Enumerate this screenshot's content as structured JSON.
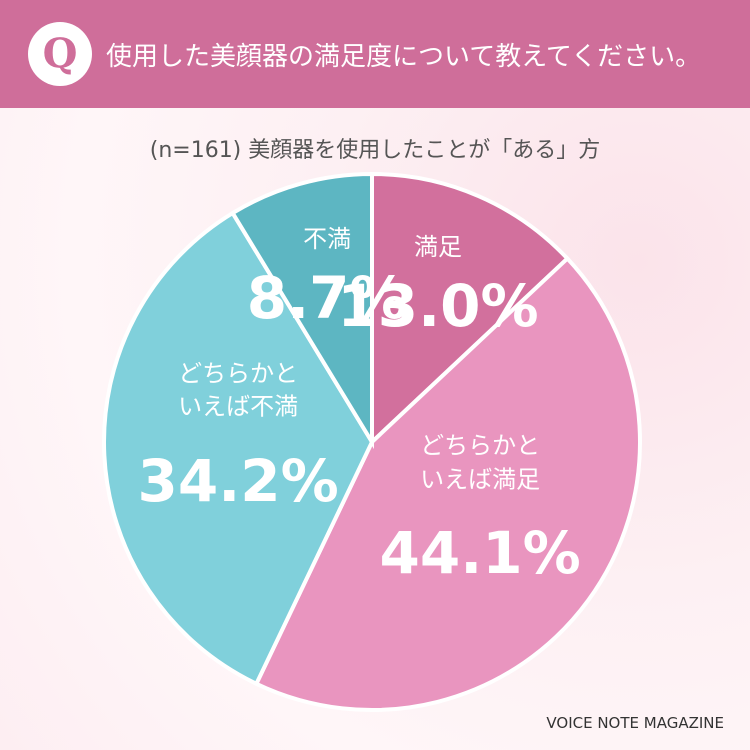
{
  "header": {
    "badge": "Q",
    "question": "使用した美顔器の満足度について教えてください。"
  },
  "chart_data": {
    "type": "pie",
    "subtitle": "(n=161) 美顔器を使用したことが「ある」方",
    "categories": [
      "満足",
      "どちらかといえば満足",
      "どちらかといえば不満",
      "不満"
    ],
    "values": [
      13.0,
      44.1,
      34.2,
      8.7
    ],
    "value_labels": [
      "13.0%",
      "44.1%",
      "34.2%",
      "8.7%"
    ],
    "colors": [
      "#d2709d",
      "#e995bf",
      "#80d0db",
      "#5db6c2"
    ]
  },
  "footer": {
    "source": "VOICE NOTE MAGAZINE"
  }
}
